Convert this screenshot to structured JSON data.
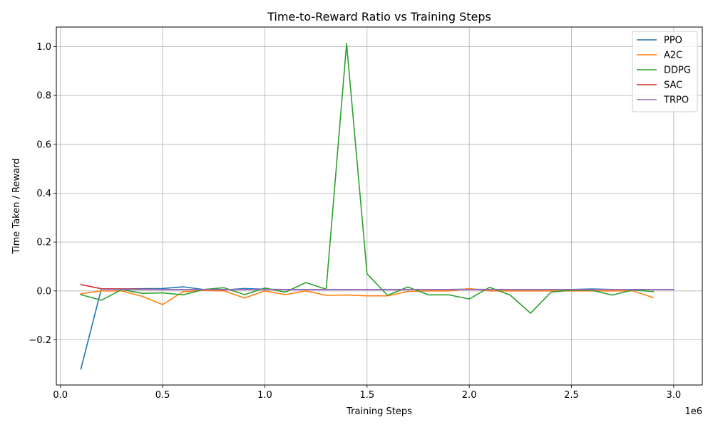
{
  "chart_data": {
    "type": "line",
    "title": "Time-to-Reward Ratio vs Training Steps",
    "xlabel": "Training Steps",
    "ylabel": "Time Taken / Reward",
    "x_offset_label": "1e6",
    "xlim": [
      -20000,
      3140000
    ],
    "ylim": [
      -0.385,
      1.08
    ],
    "xticks": [
      0,
      500000,
      1000000,
      1500000,
      2000000,
      2500000,
      3000000
    ],
    "xtick_labels": [
      "0.0",
      "0.5",
      "1.0",
      "1.5",
      "2.0",
      "2.5",
      "3.0"
    ],
    "yticks": [
      -0.2,
      0.0,
      0.2,
      0.4,
      0.6,
      0.8,
      1.0
    ],
    "ytick_labels": [
      "−0.2",
      "0.0",
      "0.2",
      "0.4",
      "0.6",
      "0.8",
      "1.0"
    ],
    "grid": true,
    "legend_position": "top-right",
    "series": [
      {
        "name": "PPO",
        "color": "#1f77b4",
        "x": [
          100000,
          200000,
          300000,
          400000,
          500000,
          600000,
          700000,
          800000,
          900000,
          1000000,
          1100000,
          1200000,
          1300000,
          1400000,
          1500000,
          1600000,
          1700000,
          1800000,
          1900000,
          2000000,
          2100000,
          2200000,
          2300000,
          2400000,
          2500000,
          2600000,
          2700000,
          2800000,
          2900000
        ],
        "y": [
          -0.32,
          0.008,
          0.008,
          0.009,
          0.01,
          0.017,
          0.006,
          0.004,
          0.01,
          0.007,
          0.006,
          0.006,
          0.006,
          0.006,
          0.006,
          0.006,
          0.006,
          0.006,
          0.006,
          0.007,
          0.006,
          0.006,
          0.006,
          0.006,
          0.006,
          0.008,
          0.006,
          0.006,
          0.006
        ]
      },
      {
        "name": "A2C",
        "color": "#ff7f0e",
        "x": [
          100000,
          200000,
          300000,
          400000,
          500000,
          600000,
          700000,
          800000,
          900000,
          1000000,
          1100000,
          1200000,
          1300000,
          1400000,
          1500000,
          1600000,
          1700000,
          1800000,
          1900000,
          2000000,
          2100000,
          2200000,
          2300000,
          2400000,
          2500000,
          2600000,
          2700000,
          2800000,
          2900000
        ],
        "y": [
          -0.012,
          0.0,
          0.0,
          -0.022,
          -0.056,
          -0.003,
          0.002,
          0.0,
          -0.029,
          0.0,
          -0.015,
          0.0,
          -0.018,
          -0.017,
          -0.02,
          -0.02,
          -0.002,
          0.0,
          0.0,
          0.01,
          0.0,
          0.0,
          0.0,
          0.0,
          0.0,
          0.0,
          0.0,
          0.0,
          -0.027
        ]
      },
      {
        "name": "DDPG",
        "color": "#2ca02c",
        "x": [
          100000,
          200000,
          300000,
          400000,
          500000,
          600000,
          700000,
          800000,
          900000,
          1000000,
          1100000,
          1200000,
          1300000,
          1400000,
          1500000,
          1600000,
          1700000,
          1800000,
          1900000,
          2000000,
          2100000,
          2200000,
          2300000,
          2400000,
          2500000,
          2600000,
          2700000,
          2800000,
          2900000
        ],
        "y": [
          -0.015,
          -0.038,
          0.006,
          -0.01,
          -0.008,
          -0.016,
          0.006,
          0.013,
          -0.015,
          0.012,
          -0.005,
          0.034,
          0.007,
          1.012,
          0.07,
          -0.018,
          0.016,
          -0.016,
          -0.016,
          -0.033,
          0.015,
          -0.017,
          -0.091,
          -0.005,
          0.003,
          0.003,
          -0.017,
          0.004,
          -0.003
        ]
      },
      {
        "name": "SAC",
        "color": "#d62728",
        "x": [
          100000,
          200000,
          300000,
          400000,
          500000,
          600000,
          700000,
          800000,
          900000,
          1000000,
          1100000,
          1200000,
          1300000,
          1400000,
          1500000,
          1600000,
          1700000,
          1800000,
          1900000,
          2000000,
          2100000,
          2200000,
          2300000,
          2400000,
          2500000,
          2600000,
          2700000,
          2800000,
          2900000,
          3000000
        ],
        "y": [
          0.026,
          0.009,
          0.008,
          0.007,
          0.006,
          0.006,
          0.006,
          0.006,
          0.006,
          0.006,
          0.006,
          0.006,
          0.006,
          0.006,
          0.006,
          0.006,
          0.006,
          0.006,
          0.006,
          0.006,
          0.006,
          0.006,
          0.006,
          0.006,
          0.006,
          0.006,
          0.006,
          0.006,
          0.006,
          0.006
        ]
      },
      {
        "name": "TRPO",
        "color": "#9467bd",
        "x": [
          200000,
          300000,
          400000,
          500000,
          600000,
          700000,
          800000,
          900000,
          1000000,
          1100000,
          1200000,
          1300000,
          1400000,
          1500000,
          1600000,
          1700000,
          1800000,
          1900000,
          2000000,
          2100000,
          2200000,
          2300000,
          2400000,
          2500000,
          2600000,
          2700000,
          2800000,
          2900000,
          3000000
        ],
        "y": [
          0.007,
          0.006,
          0.006,
          0.006,
          0.006,
          0.006,
          0.006,
          0.006,
          0.006,
          0.006,
          0.006,
          0.006,
          0.006,
          0.006,
          0.006,
          0.006,
          0.006,
          0.006,
          0.006,
          0.006,
          0.006,
          0.006,
          0.006,
          0.006,
          0.006,
          0.006,
          0.006,
          0.006,
          0.006
        ]
      }
    ]
  }
}
